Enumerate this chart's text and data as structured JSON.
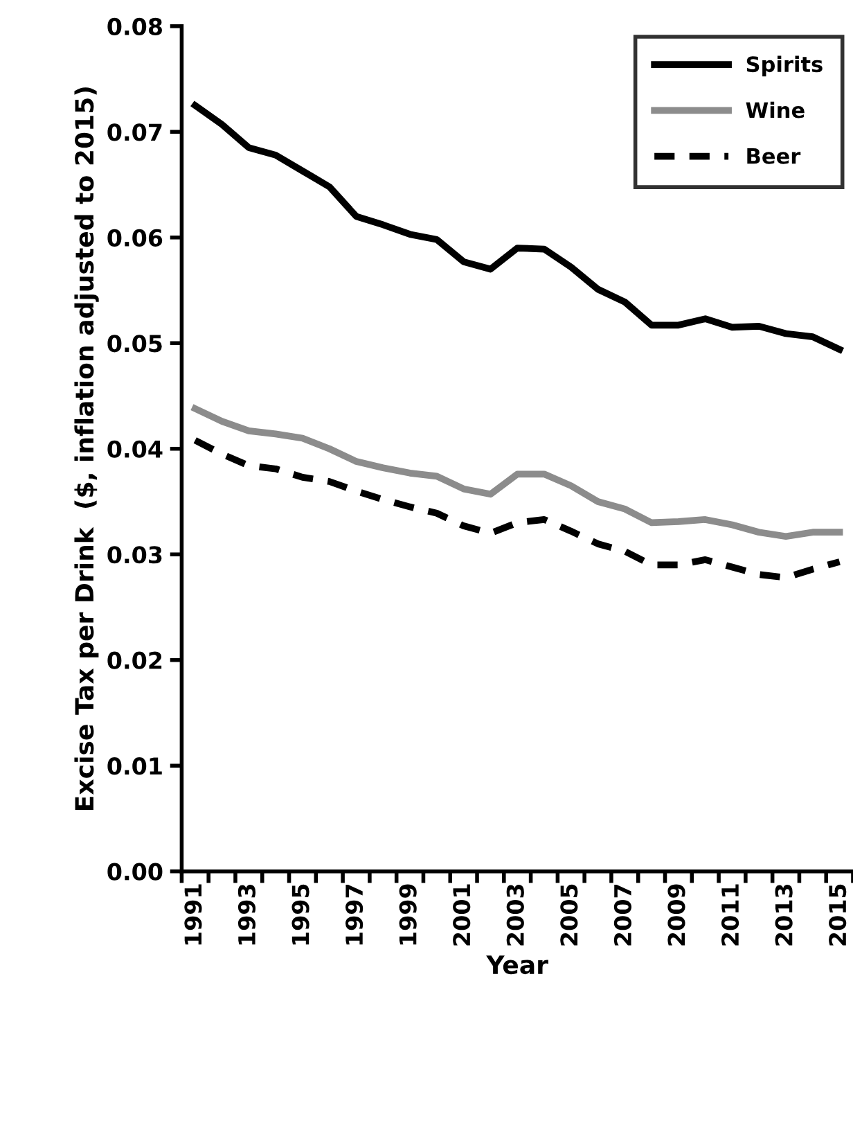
{
  "chart_data": {
    "type": "line",
    "xlabel": "Year",
    "ylabel": "Excise Tax per Drink  ($, inflation adjusted to 2015)",
    "categories": [
      "1991",
      null,
      "1993",
      null,
      "1995",
      null,
      "1997",
      null,
      "1999",
      null,
      "2001",
      null,
      "2003",
      null,
      "2005",
      null,
      "2007",
      null,
      "2009",
      null,
      "2011",
      null,
      "2013",
      null,
      "2015"
    ],
    "series": [
      {
        "name": "Spirits",
        "color": "#000000",
        "line_style": "solid",
        "values": [
          0.0725,
          0.0707,
          0.0685,
          0.0678,
          0.0663,
          0.0648,
          0.062,
          0.0612,
          0.0603,
          0.0598,
          0.0577,
          0.057,
          0.059,
          0.0589,
          0.0572,
          0.0551,
          0.0539,
          0.0517,
          0.0517,
          0.0523,
          0.0515,
          0.0516,
          0.0509,
          0.0506,
          0.0494
        ]
      },
      {
        "name": "Wine",
        "color": "#8c8c8c",
        "line_style": "solid",
        "values": [
          0.0438,
          0.0426,
          0.0417,
          0.0414,
          0.041,
          0.04,
          0.0388,
          0.0382,
          0.0377,
          0.0374,
          0.0362,
          0.0357,
          0.0376,
          0.0376,
          0.0365,
          0.035,
          0.0343,
          0.033,
          0.0331,
          0.0333,
          0.0328,
          0.0321,
          0.0317,
          0.0321,
          0.0321
        ]
      },
      {
        "name": "Beer",
        "color": "#000000",
        "line_style": "dashed",
        "values": [
          0.0408,
          0.0395,
          0.0384,
          0.0381,
          0.0373,
          0.0369,
          0.036,
          0.0352,
          0.0345,
          0.0339,
          0.0327,
          0.032,
          0.033,
          0.0333,
          0.0322,
          0.031,
          0.0303,
          0.029,
          0.029,
          0.0295,
          0.0288,
          0.0281,
          0.0278,
          0.0286,
          0.0293
        ]
      }
    ],
    "ylim": [
      0,
      0.08
    ],
    "yticks": [
      {
        "value": 0,
        "label": "0.00"
      },
      {
        "value": 0.01,
        "label": "0.01"
      },
      {
        "value": 0.02,
        "label": "0.02"
      },
      {
        "value": 0.03,
        "label": "0.03"
      },
      {
        "value": 0.04,
        "label": "0.04"
      },
      {
        "value": 0.05,
        "label": "0.05"
      },
      {
        "value": 0.06,
        "label": "0.06"
      },
      {
        "value": 0.07,
        "label": "0.07"
      },
      {
        "value": 0.08,
        "label": "0.08"
      }
    ],
    "grid": false,
    "legend": "top right",
    "marker": "none"
  }
}
